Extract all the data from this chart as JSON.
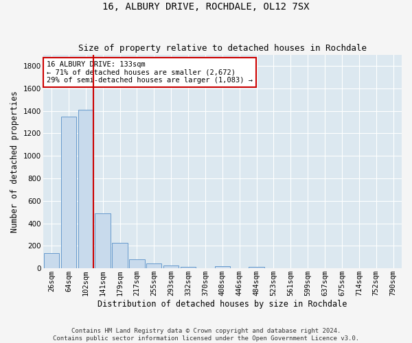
{
  "title": "16, ALBURY DRIVE, ROCHDALE, OL12 7SX",
  "subtitle": "Size of property relative to detached houses in Rochdale",
  "xlabel": "Distribution of detached houses by size in Rochdale",
  "ylabel": "Number of detached properties",
  "bar_labels": [
    "26sqm",
    "64sqm",
    "102sqm",
    "141sqm",
    "179sqm",
    "217sqm",
    "255sqm",
    "293sqm",
    "332sqm",
    "370sqm",
    "408sqm",
    "446sqm",
    "484sqm",
    "523sqm",
    "561sqm",
    "599sqm",
    "637sqm",
    "675sqm",
    "714sqm",
    "752sqm",
    "790sqm"
  ],
  "bar_values": [
    135,
    1350,
    1410,
    490,
    225,
    80,
    45,
    28,
    14,
    0,
    18,
    0,
    14,
    0,
    0,
    0,
    0,
    0,
    0,
    0,
    0
  ],
  "bar_color": "#c8daec",
  "bar_edge_color": "#6699cc",
  "vline_x_idx": 2.45,
  "vline_color": "#cc0000",
  "annotation_text": "16 ALBURY DRIVE: 133sqm\n← 71% of detached houses are smaller (2,672)\n29% of semi-detached houses are larger (1,083) →",
  "annotation_box_facecolor": "#ffffff",
  "annotation_box_edgecolor": "#cc0000",
  "ylim": [
    0,
    1900
  ],
  "yticks": [
    0,
    200,
    400,
    600,
    800,
    1000,
    1200,
    1400,
    1600,
    1800
  ],
  "plot_bg_color": "#dce8f0",
  "fig_bg_color": "#f5f5f5",
  "grid_color": "#ffffff",
  "footer": "Contains HM Land Registry data © Crown copyright and database right 2024.\nContains public sector information licensed under the Open Government Licence v3.0.",
  "title_fontsize": 10,
  "subtitle_fontsize": 9,
  "xlabel_fontsize": 8.5,
  "ylabel_fontsize": 8.5,
  "tick_fontsize": 7.5,
  "footer_fontsize": 6.5,
  "ann_fontsize": 7.5
}
